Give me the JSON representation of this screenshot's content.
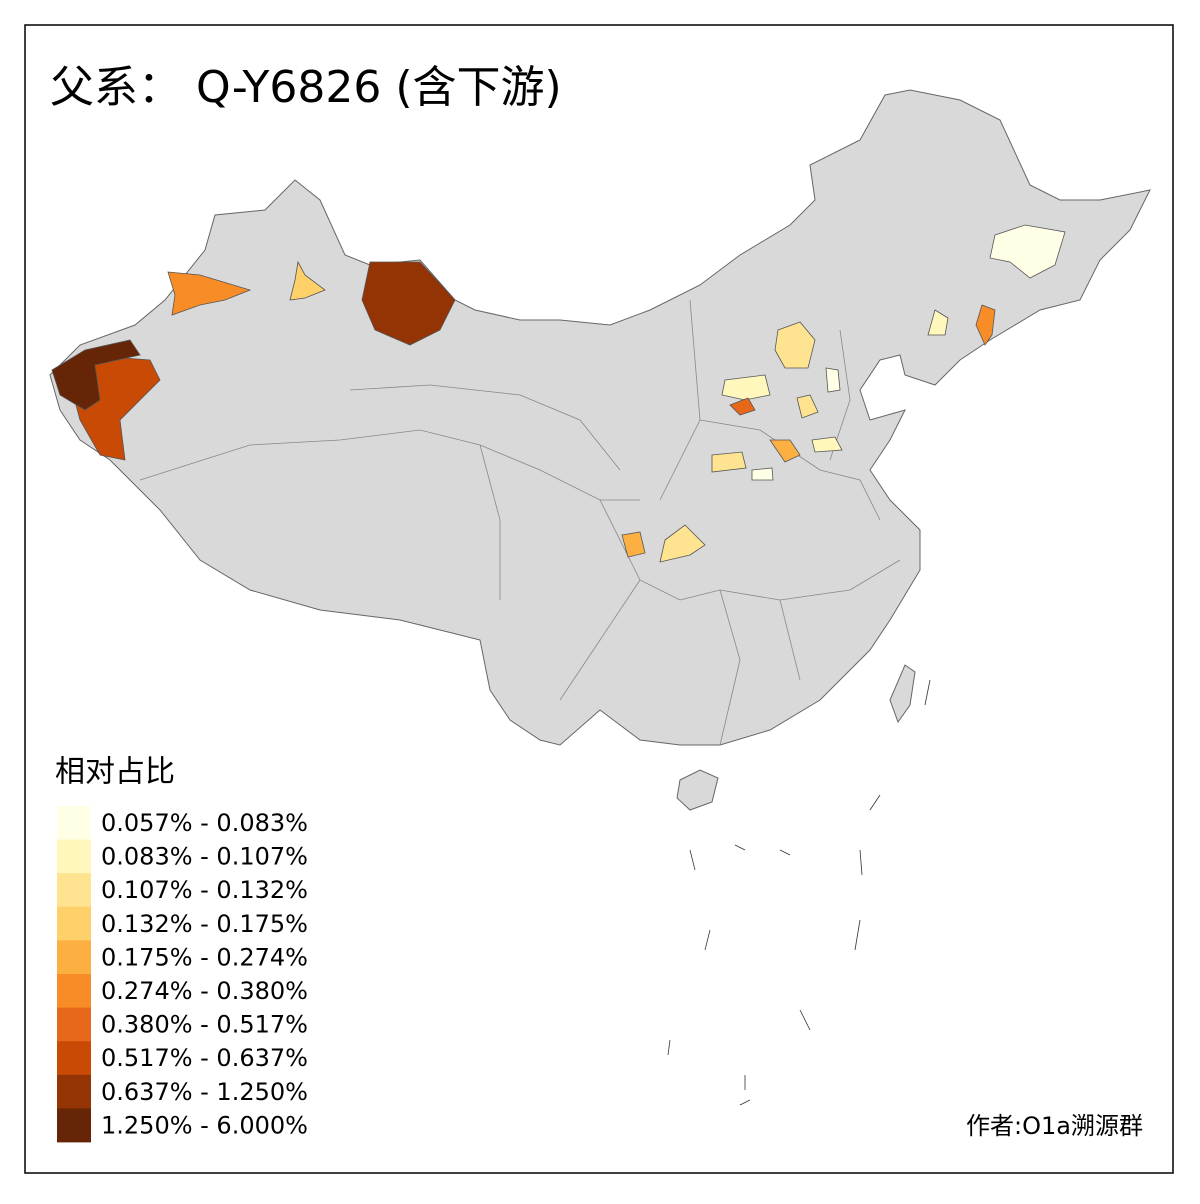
{
  "title": "父系： Q-Y6826 (含下游)",
  "legend": {
    "title": "相对占比",
    "items": [
      {
        "label": "0.057% - 0.083%",
        "color": "#ffffe5"
      },
      {
        "label": "0.083% - 0.107%",
        "color": "#fff7bc"
      },
      {
        "label": "0.107% - 0.132%",
        "color": "#fee391"
      },
      {
        "label": "0.132% - 0.175%",
        "color": "#fed06a"
      },
      {
        "label": "0.175% - 0.274%",
        "color": "#fdb042"
      },
      {
        "label": "0.274% - 0.380%",
        "color": "#f88d27"
      },
      {
        "label": "0.380% - 0.517%",
        "color": "#e8681a"
      },
      {
        "label": "0.517% - 0.637%",
        "color": "#c94a04"
      },
      {
        "label": "0.637% - 1.250%",
        "color": "#943304"
      },
      {
        "label": "1.250% - 6.000%",
        "color": "#662506"
      }
    ]
  },
  "author": "作者:O1a溯源群"
}
